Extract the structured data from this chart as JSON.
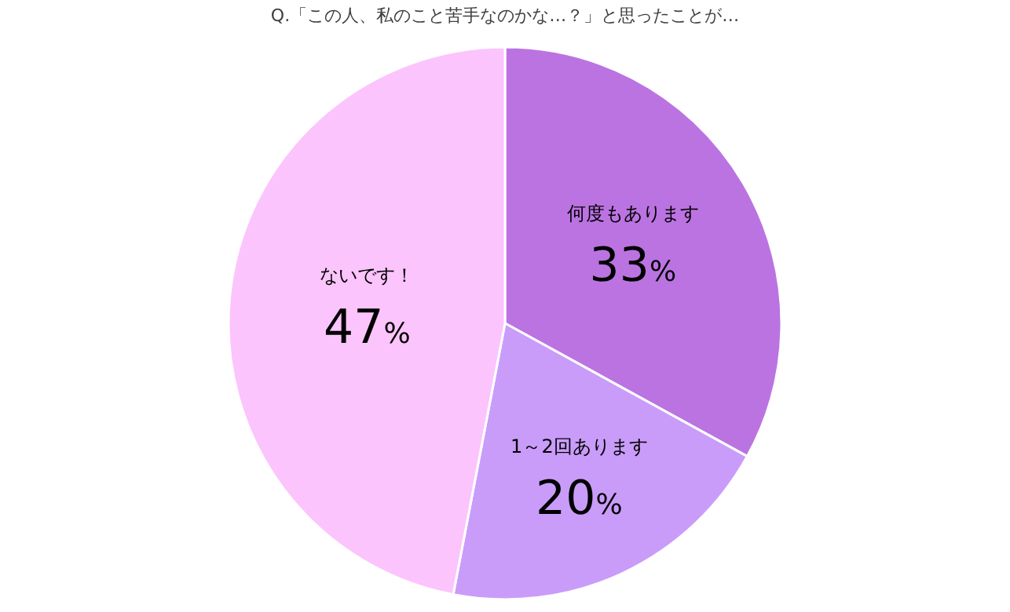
{
  "chart_data": {
    "type": "pie",
    "title": "Q.「この人、私のこと苦手なのかな…？」と思ったことが…",
    "categories": [
      "何度もあります",
      "1～2回あります",
      "ないです！"
    ],
    "values": [
      33,
      20,
      47
    ],
    "colors": [
      "#bb73e2",
      "#c99cfa",
      "#fcc4fc"
    ],
    "value_labels": [
      "33%",
      "20%",
      "47%"
    ],
    "legend": false
  }
}
